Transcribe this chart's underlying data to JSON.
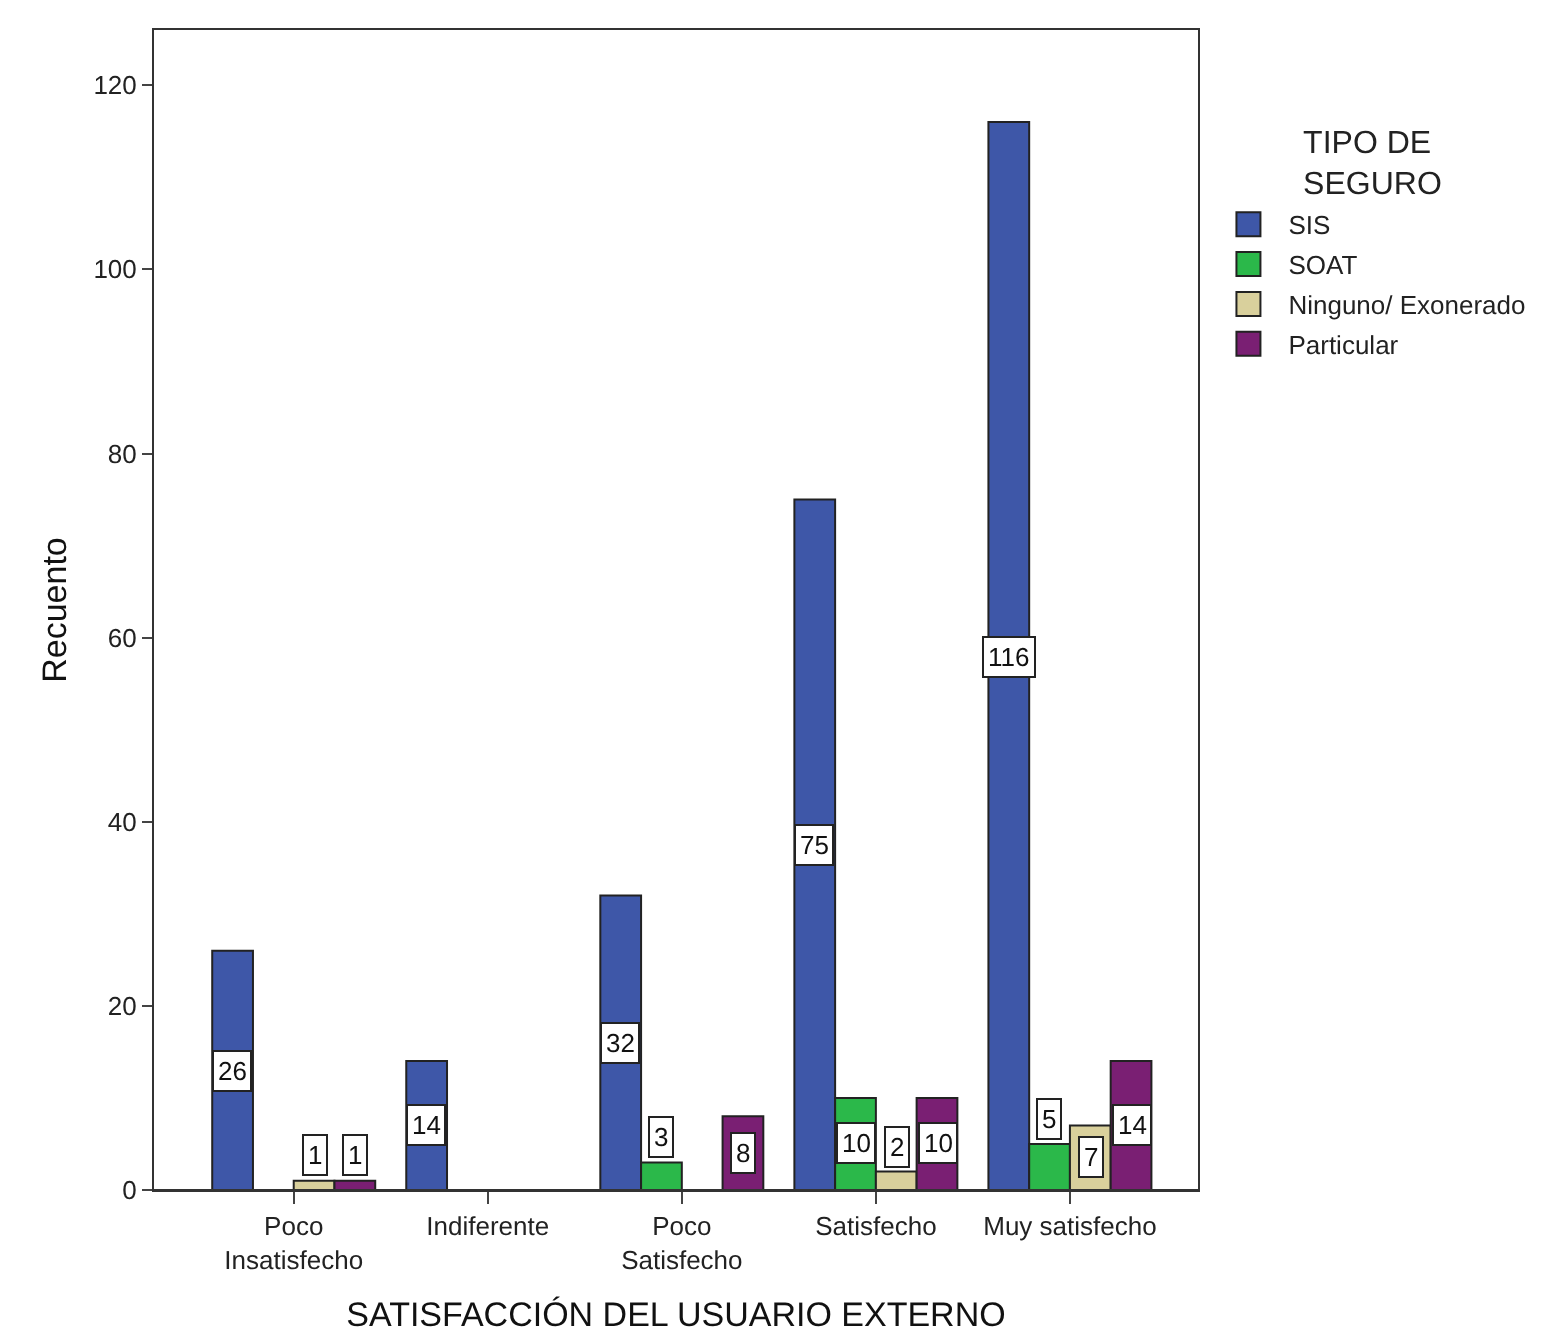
{
  "chart_data": {
    "type": "bar",
    "xlabel": "SATISFACCIÓN DEL USUARIO EXTERNO",
    "ylabel": "Recuento",
    "legend_title": "TIPO DE SEGURO",
    "categories": [
      "Poco Insatisfecho",
      "Indiferente",
      "Poco Satisfecho",
      "Satisfecho",
      "Muy satisfecho"
    ],
    "series": [
      {
        "name": "SIS",
        "color": "#3e57a8",
        "values": [
          26,
          14,
          32,
          75,
          116
        ]
      },
      {
        "name": "SOAT",
        "color": "#2bb84a",
        "values": [
          null,
          null,
          3,
          10,
          5
        ]
      },
      {
        "name": "Ninguno/ Exonerado",
        "color": "#d9d09c",
        "values": [
          1,
          null,
          null,
          2,
          7
        ]
      },
      {
        "name": "Particular",
        "color": "#7a1f73",
        "values": [
          1,
          null,
          8,
          10,
          14
        ]
      }
    ],
    "ylim": [
      0,
      126
    ],
    "yticks": [
      0,
      20,
      40,
      60,
      80,
      100,
      120
    ],
    "grid": false,
    "legend": "top right",
    "data_labels": true
  }
}
